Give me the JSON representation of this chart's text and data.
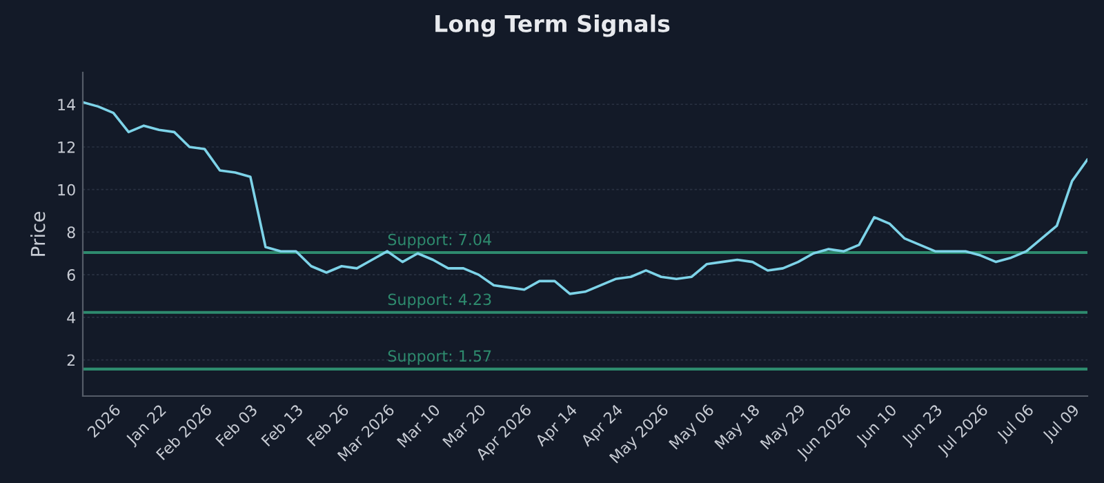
{
  "chart_data": {
    "type": "line",
    "title": "Long Term Signals",
    "ylabel": "Price",
    "categories": [
      null,
      null,
      "2026",
      null,
      null,
      "Jan 22",
      null,
      null,
      "Feb 2026",
      null,
      null,
      "Feb 03",
      null,
      null,
      "Feb 13",
      null,
      null,
      "Feb 26",
      null,
      null,
      "Mar 2026",
      null,
      null,
      "Mar 10",
      null,
      null,
      "Mar 20",
      null,
      null,
      "Apr 2026",
      null,
      null,
      "Apr 14",
      null,
      null,
      "Apr 24",
      null,
      null,
      "May 2026",
      null,
      null,
      "May 06",
      null,
      null,
      "May 18",
      null,
      null,
      "May 29",
      null,
      null,
      "Jun 2026",
      null,
      null,
      "Jun 10",
      null,
      null,
      "Jun 23",
      null,
      null,
      "Jul 2026",
      null,
      null,
      "Jul 06",
      null,
      null,
      "Jul 09",
      null
    ],
    "series": [
      {
        "color": "#7dd3e8",
        "values": [
          14.1,
          13.9,
          13.6,
          12.7,
          13.0,
          12.8,
          12.7,
          12.0,
          11.9,
          10.9,
          10.8,
          10.6,
          7.3,
          7.1,
          7.1,
          6.4,
          6.1,
          6.4,
          6.3,
          6.7,
          7.1,
          6.6,
          7.0,
          6.7,
          6.3,
          6.3,
          6.0,
          5.5,
          5.4,
          5.3,
          5.7,
          5.7,
          5.1,
          5.2,
          5.5,
          5.8,
          5.9,
          6.2,
          5.9,
          5.8,
          5.9,
          6.5,
          6.6,
          6.7,
          6.6,
          6.2,
          6.3,
          6.6,
          7.0,
          7.2,
          7.1,
          7.4,
          8.7,
          8.4,
          7.7,
          7.4,
          7.1,
          7.1,
          7.1,
          6.9,
          6.6,
          6.8,
          7.1,
          7.7,
          8.3,
          10.4,
          11.4
        ]
      }
    ],
    "ylim": [
      0.3,
      15.5
    ],
    "yticks": [
      2,
      4,
      6,
      8,
      10,
      12,
      14
    ],
    "grid": "y",
    "marker": "none",
    "line_style": "solid",
    "legend": false,
    "ref_lines": [
      {
        "axis": "y",
        "value": 7.04,
        "label": "Support: 7.04",
        "color": "#2e8b6e"
      },
      {
        "axis": "y",
        "value": 4.23,
        "label": "Support: 4.23",
        "color": "#2e8b6e"
      },
      {
        "axis": "y",
        "value": 1.57,
        "label": "Support: 1.57",
        "color": "#2e8b6e"
      }
    ]
  }
}
